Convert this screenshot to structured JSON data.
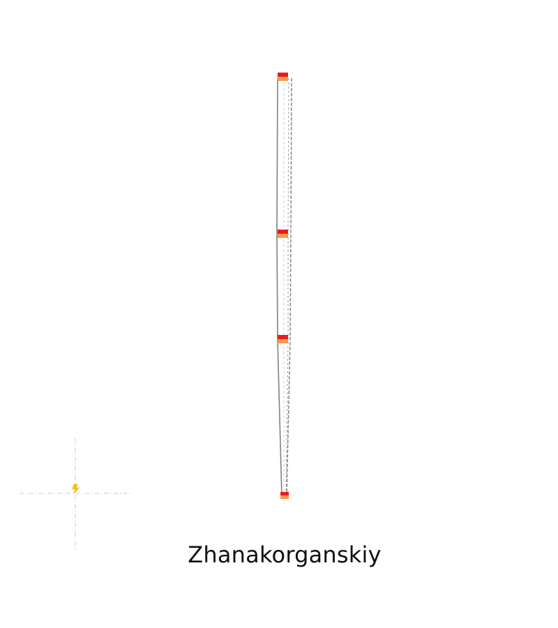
{
  "title": "Zhanakorganskiy",
  "colors": {
    "track": "#808080",
    "guide": "#cfcfcf",
    "marker_primary": "#e81c1c",
    "marker_secondary": "#f29a4a",
    "crosshair": "#d2d2d2",
    "origin_icon": "#f6c500"
  },
  "icons": {
    "origin": "lightning-icon"
  }
}
